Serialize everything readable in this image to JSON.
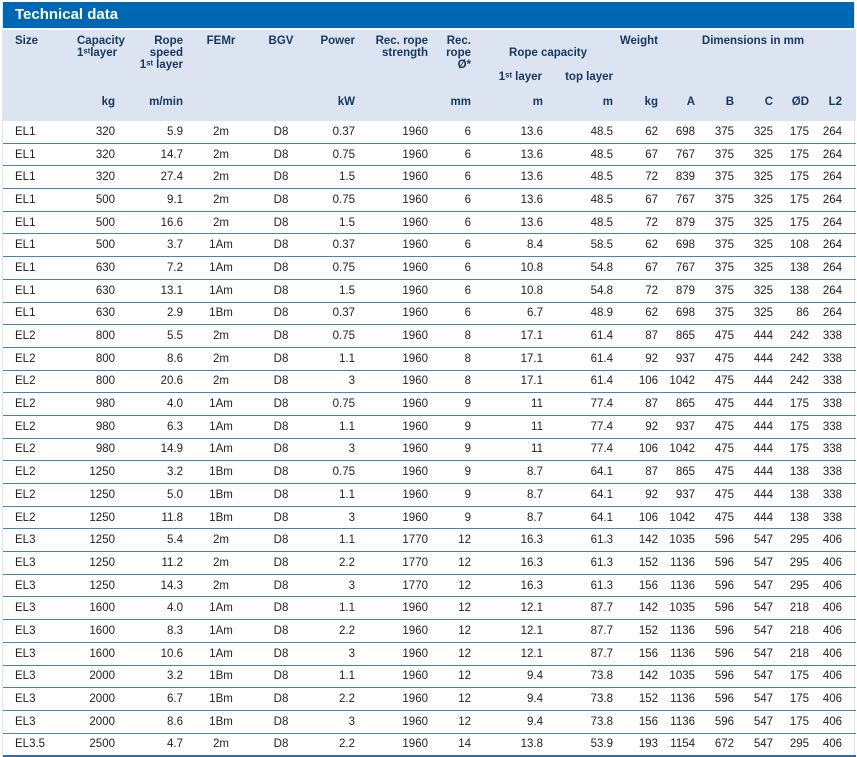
{
  "title": "Technical data",
  "header": {
    "size": "Size",
    "capacity": "Capacity\n1ˢᵗlayer",
    "rope_speed": "Rope speed\n1ˢᵗ layer",
    "femr": "FEMr",
    "bgv": "BGV",
    "power": "Power",
    "rec_rope_strength": "Rec. rope\nstrength",
    "rec_rope_dia": "Rec.\nrope Ø*",
    "rope_capacity": "Rope capacity",
    "rope_capacity_first": "1ˢᵗ layer",
    "rope_capacity_top": "top layer",
    "weight": "Weight",
    "dimensions": "Dimensions in mm"
  },
  "units": [
    "",
    "kg",
    "m/min",
    "",
    "",
    "kW",
    "",
    "mm",
    "m",
    "m",
    "kg",
    "A",
    "B",
    "C",
    "ØD",
    "L2"
  ],
  "rows": [
    [
      "EL1",
      "320",
      "5.9",
      "2m",
      "D8",
      "0.37",
      "1960",
      "6",
      "13.6",
      "48.5",
      "62",
      "698",
      "375",
      "325",
      "175",
      "264"
    ],
    [
      "EL1",
      "320",
      "14.7",
      "2m",
      "D8",
      "0.75",
      "1960",
      "6",
      "13.6",
      "48.5",
      "67",
      "767",
      "375",
      "325",
      "175",
      "264"
    ],
    [
      "EL1",
      "320",
      "27.4",
      "2m",
      "D8",
      "1.5",
      "1960",
      "6",
      "13.6",
      "48.5",
      "72",
      "839",
      "375",
      "325",
      "175",
      "264"
    ],
    [
      "EL1",
      "500",
      "9.1",
      "2m",
      "D8",
      "0.75",
      "1960",
      "6",
      "13.6",
      "48.5",
      "67",
      "767",
      "375",
      "325",
      "175",
      "264"
    ],
    [
      "EL1",
      "500",
      "16.6",
      "2m",
      "D8",
      "1.5",
      "1960",
      "6",
      "13.6",
      "48.5",
      "72",
      "879",
      "375",
      "325",
      "175",
      "264"
    ],
    [
      "EL1",
      "500",
      "3.7",
      "1Am",
      "D8",
      "0.37",
      "1960",
      "6",
      "8.4",
      "58.5",
      "62",
      "698",
      "375",
      "325",
      "108",
      "264"
    ],
    [
      "EL1",
      "630",
      "7.2",
      "1Am",
      "D8",
      "0.75",
      "1960",
      "6",
      "10.8",
      "54.8",
      "67",
      "767",
      "375",
      "325",
      "138",
      "264"
    ],
    [
      "EL1",
      "630",
      "13.1",
      "1Am",
      "D8",
      "1.5",
      "1960",
      "6",
      "10.8",
      "54.8",
      "72",
      "879",
      "375",
      "325",
      "138",
      "264"
    ],
    [
      "EL1",
      "630",
      "2.9",
      "1Bm",
      "D8",
      "0.37",
      "1960",
      "6",
      "6.7",
      "48.9",
      "62",
      "698",
      "375",
      "325",
      "86",
      "264"
    ],
    [
      "EL2",
      "800",
      "5.5",
      "2m",
      "D8",
      "0.75",
      "1960",
      "8",
      "17.1",
      "61.4",
      "87",
      "865",
      "475",
      "444",
      "242",
      "338"
    ],
    [
      "EL2",
      "800",
      "8.6",
      "2m",
      "D8",
      "1.1",
      "1960",
      "8",
      "17.1",
      "61.4",
      "92",
      "937",
      "475",
      "444",
      "242",
      "338"
    ],
    [
      "EL2",
      "800",
      "20.6",
      "2m",
      "D8",
      "3",
      "1960",
      "8",
      "17.1",
      "61.4",
      "106",
      "1042",
      "475",
      "444",
      "242",
      "338"
    ],
    [
      "EL2",
      "980",
      "4.0",
      "1Am",
      "D8",
      "0.75",
      "1960",
      "9",
      "11",
      "77.4",
      "87",
      "865",
      "475",
      "444",
      "175",
      "338"
    ],
    [
      "EL2",
      "980",
      "6.3",
      "1Am",
      "D8",
      "1.1",
      "1960",
      "9",
      "11",
      "77.4",
      "92",
      "937",
      "475",
      "444",
      "175",
      "338"
    ],
    [
      "EL2",
      "980",
      "14.9",
      "1Am",
      "D8",
      "3",
      "1960",
      "9",
      "11",
      "77.4",
      "106",
      "1042",
      "475",
      "444",
      "175",
      "338"
    ],
    [
      "EL2",
      "1250",
      "3.2",
      "1Bm",
      "D8",
      "0.75",
      "1960",
      "9",
      "8.7",
      "64.1",
      "87",
      "865",
      "475",
      "444",
      "138",
      "338"
    ],
    [
      "EL2",
      "1250",
      "5.0",
      "1Bm",
      "D8",
      "1.1",
      "1960",
      "9",
      "8.7",
      "64.1",
      "92",
      "937",
      "475",
      "444",
      "138",
      "338"
    ],
    [
      "EL2",
      "1250",
      "11.8",
      "1Bm",
      "D8",
      "3",
      "1960",
      "9",
      "8.7",
      "64.1",
      "106",
      "1042",
      "475",
      "444",
      "138",
      "338"
    ],
    [
      "EL3",
      "1250",
      "5.4",
      "2m",
      "D8",
      "1.1",
      "1770",
      "12",
      "16.3",
      "61.3",
      "142",
      "1035",
      "596",
      "547",
      "295",
      "406"
    ],
    [
      "EL3",
      "1250",
      "11.2",
      "2m",
      "D8",
      "2.2",
      "1770",
      "12",
      "16.3",
      "61.3",
      "152",
      "1136",
      "596",
      "547",
      "295",
      "406"
    ],
    [
      "EL3",
      "1250",
      "14.3",
      "2m",
      "D8",
      "3",
      "1770",
      "12",
      "16.3",
      "61.3",
      "156",
      "1136",
      "596",
      "547",
      "295",
      "406"
    ],
    [
      "EL3",
      "1600",
      "4.0",
      "1Am",
      "D8",
      "1.1",
      "1960",
      "12",
      "12.1",
      "87.7",
      "142",
      "1035",
      "596",
      "547",
      "218",
      "406"
    ],
    [
      "EL3",
      "1600",
      "8.3",
      "1Am",
      "D8",
      "2.2",
      "1960",
      "12",
      "12.1",
      "87.7",
      "152",
      "1136",
      "596",
      "547",
      "218",
      "406"
    ],
    [
      "EL3",
      "1600",
      "10.6",
      "1Am",
      "D8",
      "3",
      "1960",
      "12",
      "12.1",
      "87.7",
      "156",
      "1136",
      "596",
      "547",
      "218",
      "406"
    ],
    [
      "EL3",
      "2000",
      "3.2",
      "1Bm",
      "D8",
      "1.1",
      "1960",
      "12",
      "9.4",
      "73.8",
      "142",
      "1035",
      "596",
      "547",
      "175",
      "406"
    ],
    [
      "EL3",
      "2000",
      "6.7",
      "1Bm",
      "D8",
      "2.2",
      "1960",
      "12",
      "9.4",
      "73.8",
      "152",
      "1136",
      "596",
      "547",
      "175",
      "406"
    ],
    [
      "EL3",
      "2000",
      "8.6",
      "1Bm",
      "D8",
      "3",
      "1960",
      "12",
      "9.4",
      "73.8",
      "156",
      "1136",
      "596",
      "547",
      "175",
      "406"
    ],
    [
      "EL3.5",
      "2500",
      "4.7",
      "2m",
      "D8",
      "2.2",
      "1960",
      "14",
      "13.8",
      "53.9",
      "193",
      "1154",
      "672",
      "547",
      "295",
      "406"
    ]
  ]
}
